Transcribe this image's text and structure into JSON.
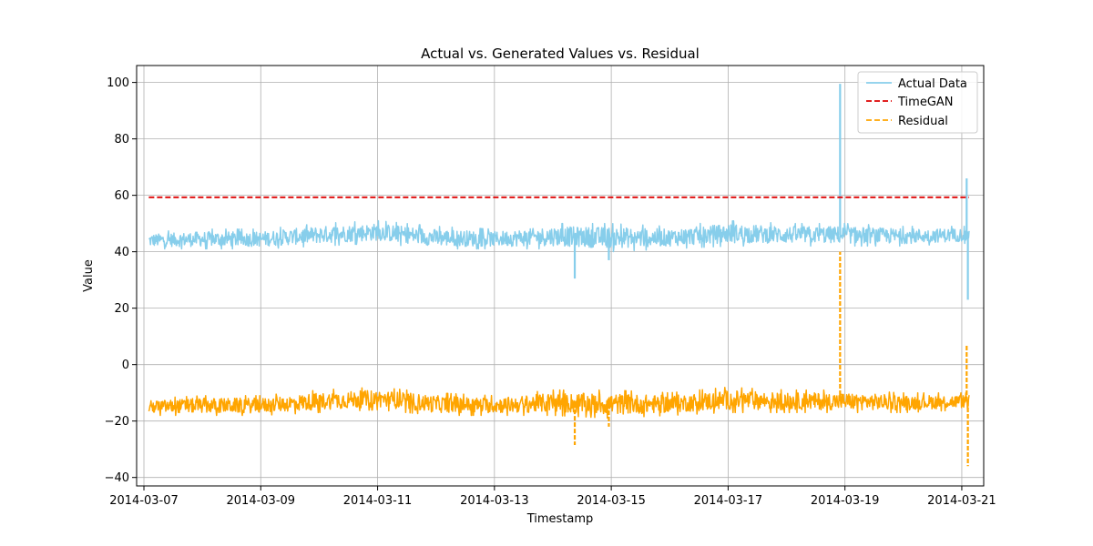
{
  "chart_data": {
    "type": "line",
    "title": "Actual vs. Generated Values vs. Residual",
    "xlabel": "Timestamp",
    "ylabel": "Value",
    "xlim": [
      "2014-03-06T21:00",
      "2014-03-21T09:00"
    ],
    "ylim": [
      -43,
      106
    ],
    "grid": true,
    "legend_position": "top-right",
    "x_ticks": [
      "2014-03-07",
      "2014-03-09",
      "2014-03-11",
      "2014-03-13",
      "2014-03-15",
      "2014-03-17",
      "2014-03-19",
      "2014-03-21"
    ],
    "y_ticks": [
      -40,
      -20,
      0,
      20,
      40,
      60,
      80,
      100
    ],
    "x_range": [
      "2014-03-07T02:00",
      "2014-03-21T03:00"
    ],
    "series": [
      {
        "name": "Actual Data",
        "color": "#87ceeb",
        "style": "solid",
        "band_points": [
          {
            "x": "2014-03-07T02:00",
            "low": 41,
            "high": 47
          },
          {
            "x": "2014-03-08T00:00",
            "low": 41,
            "high": 48
          },
          {
            "x": "2014-03-09T00:00",
            "low": 41,
            "high": 48
          },
          {
            "x": "2014-03-10T00:00",
            "low": 42,
            "high": 50
          },
          {
            "x": "2014-03-11T00:00",
            "low": 43,
            "high": 51
          },
          {
            "x": "2014-03-12T00:00",
            "low": 41,
            "high": 49
          },
          {
            "x": "2014-03-13T00:00",
            "low": 41,
            "high": 48
          },
          {
            "x": "2014-03-14T00:00",
            "low": 41,
            "high": 50
          },
          {
            "x": "2014-03-15T00:00",
            "low": 40,
            "high": 50
          },
          {
            "x": "2014-03-16T00:00",
            "low": 41,
            "high": 49
          },
          {
            "x": "2014-03-17T00:00",
            "low": 42,
            "high": 51
          },
          {
            "x": "2014-03-18T00:00",
            "low": 42,
            "high": 50
          },
          {
            "x": "2014-03-19T00:00",
            "low": 42,
            "high": 50
          },
          {
            "x": "2014-03-20T00:00",
            "low": 42,
            "high": 49
          },
          {
            "x": "2014-03-21T03:00",
            "low": 43,
            "high": 49
          }
        ],
        "spikes": [
          {
            "x": "2014-03-14T09:00",
            "y": 30.5
          },
          {
            "x": "2014-03-14T23:00",
            "y": 37
          },
          {
            "x": "2014-03-18T22:00",
            "y": 99.5
          },
          {
            "x": "2014-03-21T02:00",
            "y": 66
          },
          {
            "x": "2014-03-21T02:30",
            "y": 23
          }
        ]
      },
      {
        "name": "TimeGAN",
        "color": "#dd0000",
        "style": "dashed",
        "constant": 59.3
      },
      {
        "name": "Residual",
        "color": "#ffa500",
        "style": "dashed",
        "band_points": [
          {
            "x": "2014-03-07T02:00",
            "low": -18,
            "high": -12
          },
          {
            "x": "2014-03-08T00:00",
            "low": -18,
            "high": -11
          },
          {
            "x": "2014-03-09T00:00",
            "low": -18,
            "high": -11
          },
          {
            "x": "2014-03-10T00:00",
            "low": -17,
            "high": -9
          },
          {
            "x": "2014-03-11T00:00",
            "low": -16,
            "high": -8
          },
          {
            "x": "2014-03-12T00:00",
            "low": -18,
            "high": -10
          },
          {
            "x": "2014-03-13T00:00",
            "low": -18,
            "high": -11
          },
          {
            "x": "2014-03-14T00:00",
            "low": -18,
            "high": -9
          },
          {
            "x": "2014-03-15T00:00",
            "low": -19,
            "high": -9
          },
          {
            "x": "2014-03-16T00:00",
            "low": -18,
            "high": -10
          },
          {
            "x": "2014-03-17T00:00",
            "low": -17,
            "high": -8
          },
          {
            "x": "2014-03-18T00:00",
            "low": -17,
            "high": -9
          },
          {
            "x": "2014-03-19T00:00",
            "low": -17,
            "high": -9
          },
          {
            "x": "2014-03-20T00:00",
            "low": -17,
            "high": -10
          },
          {
            "x": "2014-03-21T03:00",
            "low": -16,
            "high": -10
          }
        ],
        "spikes": [
          {
            "x": "2014-03-14T09:00",
            "y": -28.5
          },
          {
            "x": "2014-03-14T23:00",
            "y": -22
          },
          {
            "x": "2014-03-18T22:00",
            "y": 40
          },
          {
            "x": "2014-03-21T02:00",
            "y": 7
          },
          {
            "x": "2014-03-21T02:30",
            "y": -36
          }
        ]
      }
    ]
  }
}
